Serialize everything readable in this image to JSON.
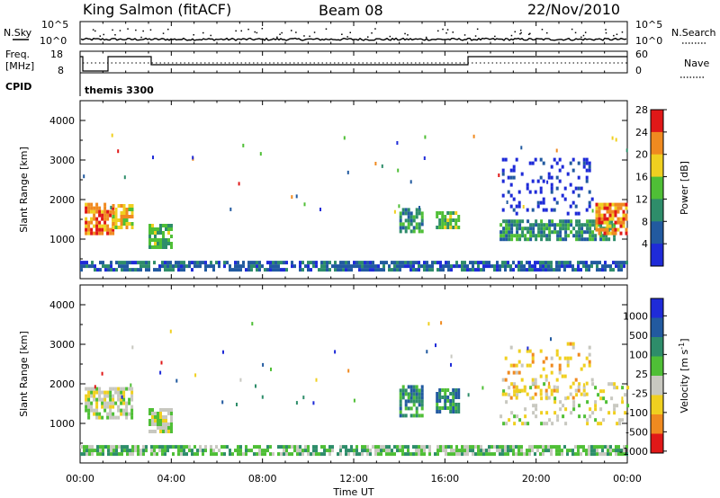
{
  "header": {
    "station": "King Salmon (fitACF)",
    "beam": "Beam 08",
    "date": "22/Nov/2010"
  },
  "top_panel": {
    "nsky_label": "N.Sky",
    "nsearch_label": "N.Search",
    "y_left_ticks": [
      "10^5",
      "10^0"
    ],
    "y_right_ticks": [
      "10^5",
      "10^0"
    ]
  },
  "freq_panel": {
    "freq_label_1": "Freq.",
    "freq_label_2": "[MHz]",
    "nave_label": "Nave",
    "y_left_ticks": [
      "18",
      "8"
    ],
    "y_right_ticks": [
      "60",
      "0"
    ],
    "cpid_label": "CPID",
    "cpid_text": "themis 3300"
  },
  "x_axis": {
    "ticks": [
      "00:00",
      "04:00",
      "08:00",
      "12:00",
      "16:00",
      "20:00",
      "00:00"
    ],
    "label": "Time UT"
  },
  "chart_data": [
    {
      "type": "heatmap",
      "quantity": "power",
      "ylabel": "Slant Range [km]",
      "y_ticks": [
        "1000",
        "2000",
        "3000",
        "4000"
      ],
      "ylim": [
        0,
        4500
      ],
      "xlim_hours": [
        0,
        24
      ],
      "colorbar_label": "Power [dB]",
      "colorbar_ticks": [
        "4",
        "8",
        "12",
        "16",
        "20",
        "24",
        "28"
      ],
      "colors": [
        "#1f2bd8",
        "#225aa0",
        "#2e8d6a",
        "#4fbf36",
        "#f0d020",
        "#f08a20",
        "#e01818"
      ],
      "regions": [
        {
          "t0": 0.2,
          "t1": 1.4,
          "r0": 1100,
          "r1": 1900,
          "level": 5
        },
        {
          "t0": 1.4,
          "t1": 2.3,
          "r0": 1250,
          "r1": 1850,
          "level": 4
        },
        {
          "t0": 3.0,
          "t1": 4.0,
          "r0": 750,
          "r1": 1300,
          "level": 3
        },
        {
          "t0": 14.0,
          "t1": 15.0,
          "r0": 1150,
          "r1": 1700,
          "level": 2
        },
        {
          "t0": 15.6,
          "t1": 16.6,
          "r0": 1250,
          "r1": 1700,
          "level": 3
        },
        {
          "t0": 18.4,
          "t1": 23.4,
          "r0": 950,
          "r1": 1450,
          "level": 2
        },
        {
          "t0": 22.6,
          "t1": 24.0,
          "r0": 1100,
          "r1": 1900,
          "level": 5
        },
        {
          "t0": 18.5,
          "t1": 22.5,
          "r0": 1600,
          "r1": 3000,
          "level": 0
        },
        {
          "t0": 0.0,
          "t1": 24.0,
          "r0": 180,
          "r1": 400,
          "level": 1
        }
      ]
    },
    {
      "type": "heatmap",
      "quantity": "velocity",
      "ylabel": "Slant Range [km]",
      "y_ticks": [
        "1000",
        "2000",
        "3000",
        "4000"
      ],
      "ylim": [
        0,
        4500
      ],
      "xlim_hours": [
        0,
        24
      ],
      "colorbar_label": "Velocity [m s^-1]",
      "colorbar_ticks": [
        "1000",
        "500",
        "100",
        "25",
        "-25",
        "-100",
        "-500",
        "-1000"
      ],
      "colors": [
        "#1f2bd8",
        "#225aa0",
        "#2e8d6a",
        "#4fbf36",
        "#c8c8c0",
        "#f0d020",
        "#f08a20",
        "#e01818"
      ],
      "regions": [
        {
          "t0": 0.2,
          "t1": 2.3,
          "r0": 1100,
          "r1": 1900,
          "level": 4
        },
        {
          "t0": 3.0,
          "t1": 4.0,
          "r0": 750,
          "r1": 1300,
          "level": 4
        },
        {
          "t0": 14.0,
          "t1": 15.0,
          "r0": 1150,
          "r1": 1900,
          "level": 2
        },
        {
          "t0": 15.6,
          "t1": 16.6,
          "r0": 1250,
          "r1": 1800,
          "level": 2
        },
        {
          "t0": 18.4,
          "t1": 24.0,
          "r0": 950,
          "r1": 2000,
          "level": 4
        },
        {
          "t0": 18.5,
          "t1": 22.5,
          "r0": 1600,
          "r1": 3000,
          "level": 5
        },
        {
          "t0": 0.0,
          "t1": 24.0,
          "r0": 180,
          "r1": 400,
          "level": 3
        }
      ]
    }
  ]
}
